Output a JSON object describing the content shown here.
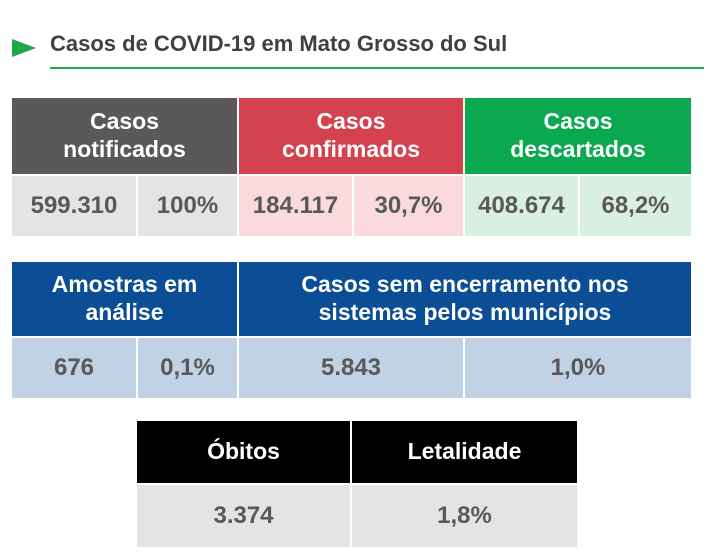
{
  "title": "Casos de COVID-19 em Mato Grosso do Sul",
  "colors": {
    "accent_green": "#1fa64a",
    "gray_header": "#595959",
    "red_header": "#d5424f",
    "green_header": "#0aa84f",
    "blue_header": "#0b4e96",
    "black_header": "#000000",
    "gray_value": "#e4e4e4",
    "red_value": "#fadadd",
    "green_value": "#d9efe2",
    "blue_value": "#c0d2e3"
  },
  "row1": {
    "notificados": {
      "header": "Casos notificados",
      "count": "599.310",
      "percent": "100%"
    },
    "confirmados": {
      "header": "Casos confirmados",
      "count": "184.117",
      "percent": "30,7%"
    },
    "descartados": {
      "header": "Casos descartados",
      "count": "408.674",
      "percent": "68,2%"
    }
  },
  "row2": {
    "amostras": {
      "header": "Amostras em análise",
      "count": "676",
      "percent": "0,1%"
    },
    "sem_encerramento": {
      "header": "Casos sem encerramento nos sistemas pelos municípios",
      "count": "5.843",
      "percent": "1,0%"
    }
  },
  "row3": {
    "obitos": {
      "header": "Óbitos",
      "value": "3.374"
    },
    "letalidade": {
      "header": "Letalidade",
      "value": "1,8%"
    }
  }
}
